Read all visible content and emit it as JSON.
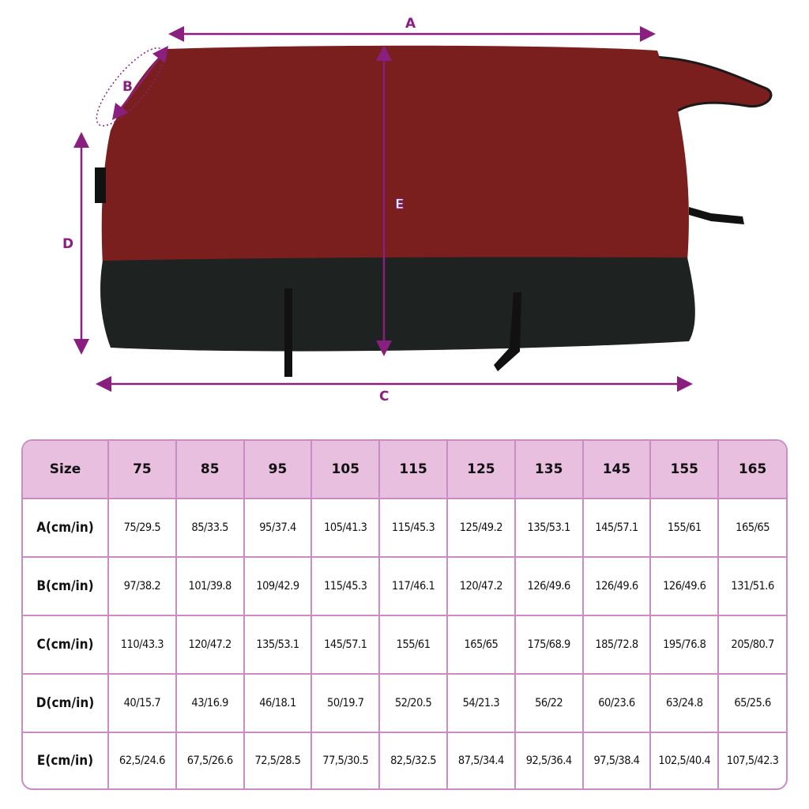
{
  "illustration": {
    "labels": {
      "a": "A",
      "b": "B",
      "c": "C",
      "d": "D",
      "e": "E"
    },
    "colors": {
      "blanket_top": "#7a1f1d",
      "blanket_bottom": "#1e2220",
      "dimension_lines": "#8b1f7f"
    }
  },
  "table": {
    "header": [
      "Size",
      "75",
      "85",
      "95",
      "105",
      "115",
      "125",
      "135",
      "145",
      "155",
      "165"
    ],
    "rows": [
      {
        "label": "A(cm/in)",
        "values": [
          "75/29.5",
          "85/33.5",
          "95/37.4",
          "105/41.3",
          "115/45.3",
          "125/49.2",
          "135/53.1",
          "145/57.1",
          "155/61",
          "165/65"
        ]
      },
      {
        "label": "B(cm/in)",
        "values": [
          "97/38.2",
          "101/39.8",
          "109/42.9",
          "115/45.3",
          "117/46.1",
          "120/47.2",
          "126/49.6",
          "126/49.6",
          "126/49.6",
          "131/51.6"
        ]
      },
      {
        "label": "C(cm/in)",
        "values": [
          "110/43.3",
          "120/47.2",
          "135/53.1",
          "145/57.1",
          "155/61",
          "165/65",
          "175/68.9",
          "185/72.8",
          "195/76.8",
          "205/80.7"
        ]
      },
      {
        "label": "D(cm/in)",
        "values": [
          "40/15.7",
          "43/16.9",
          "46/18.1",
          "50/19.7",
          "52/20.5",
          "54/21.3",
          "56/22",
          "60/23.6",
          "63/24.8",
          "65/25.6"
        ]
      },
      {
        "label": "E(cm/in)",
        "values": [
          "62,5/24.6",
          "67,5/26.6",
          "72,5/28.5",
          "77,5/30.5",
          "82,5/32.5",
          "87,5/34.4",
          "92,5/36.4",
          "97,5/38.4",
          "102,5/40.4",
          "107,5/42.3"
        ]
      }
    ],
    "colors": {
      "header_bg": "#e8bfdf",
      "border": "#c98cc4"
    }
  }
}
